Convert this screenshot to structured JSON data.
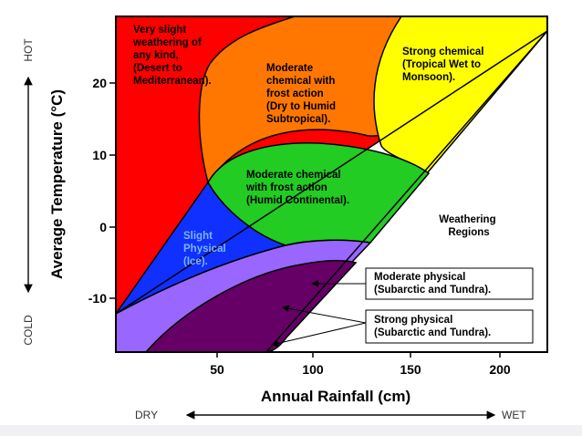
{
  "diagram": {
    "legend_title": [
      "Weathering",
      "Regions"
    ],
    "regions": {
      "very_slight": [
        "Very slight",
        "weathering of",
        "any kind,",
        "(Desert to",
        "Mediterranean)."
      ],
      "moderate_frost": [
        "Moderate",
        "chemical with",
        "frost action",
        "(Dry to Humid",
        "Subtropical)."
      ],
      "strong_chemical": [
        "Strong  chemical",
        "(Tropical Wet to",
        "Monsoon)."
      ],
      "moderate_chem_frost": [
        "Moderate chemical",
        "with frost action",
        "(Humid Continental)."
      ],
      "slight_physical": [
        "Slight",
        "Physical",
        "(Ice)."
      ],
      "moderate_physical": [
        "Moderate physical",
        "(Subarctic and Tundra)."
      ],
      "strong_physical": [
        "Strong physical",
        "(Subarctic and Tundra)."
      ]
    },
    "x_axis": {
      "title": "Annual Rainfall (cm)",
      "ticks": [
        "50",
        "100",
        "150",
        "200"
      ],
      "left_word": "DRY",
      "right_word": "WET"
    },
    "y_axis": {
      "title": "Average Temperature (°C)",
      "ticks": [
        "20",
        "10",
        "0",
        "-10"
      ],
      "top_word": "HOT",
      "bottom_word": "COLD"
    },
    "colors": {
      "red": "#ff0000",
      "orange": "#ff7700",
      "yellow": "#ffff00",
      "green": "#22cc22",
      "blue": "#1030ff",
      "light_purple": "#9966ff",
      "dark_purple": "#660066"
    }
  }
}
